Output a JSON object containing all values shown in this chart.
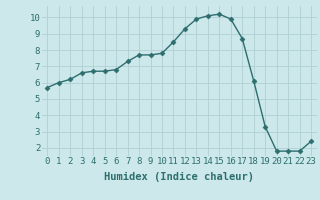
{
  "x": [
    0,
    1,
    2,
    3,
    4,
    5,
    6,
    7,
    8,
    9,
    10,
    11,
    12,
    13,
    14,
    15,
    16,
    17,
    18,
    19,
    20,
    21,
    22,
    23
  ],
  "y": [
    5.7,
    6.0,
    6.2,
    6.6,
    6.7,
    6.7,
    6.8,
    7.3,
    7.7,
    7.7,
    7.8,
    8.5,
    9.3,
    9.9,
    10.1,
    10.2,
    9.9,
    8.7,
    6.1,
    3.3,
    1.8,
    1.8,
    1.8,
    2.4
  ],
  "line_color": "#2d6e6e",
  "marker": "D",
  "marker_size": 2.5,
  "bg_color": "#cce8ea",
  "grid_color": "#b0d0d4",
  "xlabel": "Humidex (Indice chaleur)",
  "xlim": [
    -0.5,
    23.5
  ],
  "ylim": [
    1.5,
    10.7
  ],
  "yticks": [
    2,
    3,
    4,
    5,
    6,
    7,
    8,
    9,
    10
  ],
  "xticks": [
    0,
    1,
    2,
    3,
    4,
    5,
    6,
    7,
    8,
    9,
    10,
    11,
    12,
    13,
    14,
    15,
    16,
    17,
    18,
    19,
    20,
    21,
    22,
    23
  ],
  "tick_label_fontsize": 6.5,
  "xlabel_fontsize": 7.5,
  "line_width": 1.0
}
